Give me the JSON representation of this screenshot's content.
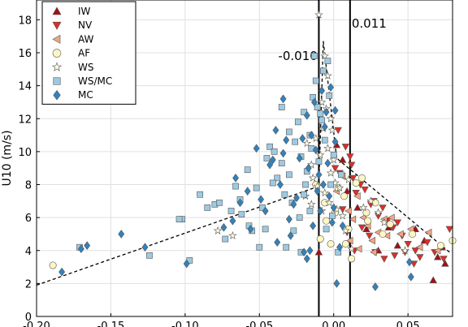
{
  "chart_data": {
    "type": "scatter",
    "title": "",
    "xlabel": "",
    "ylabel": "U10 (m/s)",
    "xlim": [
      -0.2,
      0.08
    ],
    "ylim": [
      0,
      19.2
    ],
    "x_ticks": [
      -0.2,
      -0.15,
      -0.1,
      -0.05,
      0.0,
      0.05
    ],
    "x_tick_labels": [
      "-0.20",
      "-0.15",
      "-0.10",
      "-0.05",
      "0.00",
      "0.05"
    ],
    "y_ticks": [
      0,
      2,
      4,
      6,
      8,
      10,
      12,
      14,
      16,
      18
    ],
    "y_tick_labels": [
      "0",
      "2",
      "4",
      "6",
      "8",
      "10",
      "12",
      "14",
      "16",
      "18"
    ],
    "grid": true,
    "legend_position": "top-left",
    "vertical_lines": [
      {
        "x": -0.01,
        "label": "-0.010"
      },
      {
        "x": 0.011,
        "label": "0.011"
      }
    ],
    "fit_lines": [
      {
        "name": "left",
        "points": [
          [
            -0.2,
            1.9
          ],
          [
            -0.01,
            7.9
          ],
          [
            -0.007,
            16.7
          ]
        ]
      },
      {
        "name": "right",
        "points": [
          [
            -0.007,
            16.7
          ],
          [
            0.002,
            9.6
          ],
          [
            0.078,
            3.9
          ]
        ]
      }
    ],
    "series": [
      {
        "name": "IW",
        "marker": "triangle-up",
        "color": "#a50f15",
        "points": [
          [
            -0.01,
            3.9
          ],
          [
            0.002,
            10.4
          ],
          [
            0.006,
            9.5
          ],
          [
            0.009,
            7.6
          ],
          [
            0.016,
            6.6
          ],
          [
            0.022,
            5.3
          ],
          [
            0.03,
            4.0
          ],
          [
            0.037,
            5.4
          ],
          [
            0.043,
            4.3
          ],
          [
            0.055,
            5.3
          ],
          [
            0.061,
            4.6
          ],
          [
            0.07,
            3.6
          ],
          [
            0.073,
            4.2
          ],
          [
            0.075,
            3.2
          ],
          [
            0.067,
            2.2
          ]
        ]
      },
      {
        "name": "NV",
        "marker": "triangle-down",
        "color": "#de2d26",
        "points": [
          [
            0.001,
            9.0
          ],
          [
            0.004,
            8.7
          ],
          [
            0.008,
            10.3
          ],
          [
            0.011,
            9.7
          ],
          [
            0.013,
            8.4
          ],
          [
            0.015,
            7.5
          ],
          [
            0.018,
            8.0
          ],
          [
            0.021,
            7.7
          ],
          [
            0.025,
            6.8
          ],
          [
            0.027,
            7.0
          ],
          [
            0.03,
            6.1
          ],
          [
            0.033,
            6.6
          ],
          [
            0.036,
            5.8
          ],
          [
            0.04,
            5.4
          ],
          [
            0.043,
            5.7
          ],
          [
            0.046,
            4.9
          ],
          [
            0.05,
            4.4
          ],
          [
            0.055,
            4.0
          ],
          [
            0.058,
            3.6
          ],
          [
            0.063,
            4.5
          ],
          [
            0.068,
            3.9
          ],
          [
            0.074,
            3.5
          ],
          [
            0.078,
            5.3
          ],
          [
            0.006,
            6.5
          ],
          [
            0.009,
            5.1
          ],
          [
            0.014,
            4.0
          ],
          [
            0.019,
            5.4
          ],
          [
            0.024,
            4.9
          ],
          [
            0.028,
            3.9
          ],
          [
            0.034,
            3.5
          ],
          [
            0.041,
            3.7
          ],
          [
            0.048,
            3.9
          ],
          [
            0.054,
            3.2
          ],
          [
            0.003,
            11.3
          ],
          [
            0.012,
            9.2
          ]
        ]
      },
      {
        "name": "AW",
        "marker": "triangle-left",
        "color": "#f4a582",
        "points": [
          [
            0.002,
            7.6
          ],
          [
            0.006,
            8.5
          ],
          [
            0.01,
            6.4
          ],
          [
            0.013,
            5.9
          ],
          [
            0.016,
            7.3
          ],
          [
            0.02,
            6.0
          ],
          [
            0.023,
            5.5
          ],
          [
            0.026,
            4.6
          ],
          [
            0.03,
            5.1
          ],
          [
            0.034,
            5.9
          ],
          [
            0.039,
            6.0
          ],
          [
            0.045,
            5.0
          ],
          [
            0.052,
            5.3
          ],
          [
            0.058,
            4.2
          ],
          [
            0.064,
            5.1
          ],
          [
            0.07,
            4.0
          ],
          [
            0.011,
            4.6
          ],
          [
            0.017,
            4.1
          ],
          [
            0.027,
            3.9
          ],
          [
            0.036,
            4.9
          ]
        ]
      },
      {
        "name": "AF",
        "marker": "circle",
        "color": "#fdf7c3",
        "points": [
          [
            -0.189,
            3.1
          ],
          [
            -0.009,
            4.7
          ],
          [
            -0.005,
            5.8
          ],
          [
            -0.002,
            4.4
          ],
          [
            0.001,
            6.3
          ],
          [
            0.003,
            7.8
          ],
          [
            0.007,
            7.3
          ],
          [
            0.01,
            5.3
          ],
          [
            0.015,
            8.1
          ],
          [
            0.019,
            8.4
          ],
          [
            0.023,
            5.8
          ],
          [
            0.028,
            6.9
          ],
          [
            0.033,
            5.0
          ],
          [
            0.038,
            5.6
          ],
          [
            0.053,
            5.0
          ],
          [
            0.072,
            4.3
          ],
          [
            0.08,
            4.6
          ],
          [
            0.008,
            4.4
          ],
          [
            0.012,
            3.5
          ],
          [
            0.022,
            6.3
          ],
          [
            -0.012,
            8.0
          ],
          [
            -0.006,
            6.9
          ]
        ]
      },
      {
        "name": "WS",
        "marker": "star",
        "color": "#fefbe6",
        "points": [
          [
            -0.01,
            18.3
          ],
          [
            -0.006,
            15.8
          ],
          [
            -0.004,
            14.6
          ],
          [
            -0.008,
            13.0
          ],
          [
            -0.002,
            12.0
          ],
          [
            -0.007,
            11.4
          ],
          [
            -0.012,
            10.8
          ],
          [
            -0.004,
            10.2
          ],
          [
            0.0,
            9.5
          ],
          [
            -0.009,
            9.8
          ],
          [
            -0.015,
            9.2
          ],
          [
            -0.002,
            8.7
          ],
          [
            0.001,
            8.1
          ],
          [
            0.004,
            7.8
          ],
          [
            -0.006,
            7.5
          ],
          [
            -0.011,
            7.9
          ],
          [
            -0.019,
            7.3
          ],
          [
            -0.003,
            6.9
          ],
          [
            0.002,
            6.5
          ],
          [
            0.006,
            6.1
          ],
          [
            -0.008,
            6.4
          ],
          [
            -0.015,
            6.8
          ],
          [
            -0.068,
            4.9
          ],
          [
            -0.078,
            5.2
          ],
          [
            0.025,
            7.0
          ],
          [
            0.012,
            4.1
          ],
          [
            0.048,
            4.0
          ],
          [
            0.034,
            5.7
          ],
          [
            0.02,
            6.6
          ],
          [
            0.008,
            5.2
          ],
          [
            -0.001,
            11.3
          ],
          [
            -0.005,
            12.6
          ],
          [
            -0.018,
            10.5
          ],
          [
            -0.014,
            8.4
          ],
          [
            0.01,
            8.3
          ],
          [
            0.03,
            6.3
          ]
        ]
      },
      {
        "name": "WS/MC",
        "marker": "square",
        "color": "#9ecae1",
        "points": [
          [
            -0.171,
            4.2
          ],
          [
            -0.124,
            3.7
          ],
          [
            -0.102,
            5.9
          ],
          [
            -0.104,
            5.9
          ],
          [
            -0.097,
            3.4
          ],
          [
            -0.09,
            7.4
          ],
          [
            -0.085,
            6.6
          ],
          [
            -0.08,
            6.8
          ],
          [
            -0.077,
            6.9
          ],
          [
            -0.073,
            4.7
          ],
          [
            -0.069,
            6.4
          ],
          [
            -0.063,
            7.1
          ],
          [
            -0.058,
            8.9
          ],
          [
            -0.055,
            5.2
          ],
          [
            -0.052,
            7.8
          ],
          [
            -0.048,
            6.6
          ],
          [
            -0.045,
            9.6
          ],
          [
            -0.043,
            10.3
          ],
          [
            -0.04,
            10.0
          ],
          [
            -0.038,
            8.4
          ],
          [
            -0.035,
            9.3
          ],
          [
            -0.033,
            7.4
          ],
          [
            -0.03,
            11.2
          ],
          [
            -0.028,
            6.9
          ],
          [
            -0.026,
            10.6
          ],
          [
            -0.024,
            11.8
          ],
          [
            -0.022,
            9.7
          ],
          [
            -0.02,
            12.4
          ],
          [
            -0.018,
            8.8
          ],
          [
            -0.016,
            11.0
          ],
          [
            -0.014,
            13.3
          ],
          [
            -0.012,
            14.3
          ],
          [
            -0.01,
            9.4
          ],
          [
            -0.008,
            11.9
          ],
          [
            -0.006,
            10.7
          ],
          [
            -0.004,
            15.5
          ],
          [
            -0.002,
            8.0
          ],
          [
            0.0,
            9.8
          ],
          [
            -0.003,
            13.4
          ],
          [
            -0.007,
            14.9
          ],
          [
            -0.011,
            12.7
          ],
          [
            -0.015,
            10.2
          ],
          [
            -0.019,
            8.0
          ],
          [
            -0.023,
            6.0
          ],
          [
            -0.027,
            5.2
          ],
          [
            -0.032,
            4.2
          ],
          [
            -0.046,
            5.3
          ],
          [
            -0.05,
            4.2
          ],
          [
            -0.022,
            3.9
          ],
          [
            0.003,
            3.9
          ],
          [
            -0.001,
            6.1
          ],
          [
            0.005,
            8.6
          ],
          [
            -0.035,
            12.7
          ],
          [
            -0.013,
            15.8
          ],
          [
            -0.009,
            12.3
          ],
          [
            -0.041,
            8.1
          ],
          [
            -0.062,
            6.2
          ],
          [
            -0.066,
            7.9
          ],
          [
            -0.057,
            5.5
          ],
          [
            -0.03,
            8.6
          ],
          [
            -0.02,
            7.4
          ],
          [
            -0.016,
            6.4
          ],
          [
            -0.005,
            5.3
          ]
        ]
      },
      {
        "name": "MC",
        "marker": "diamond",
        "color": "#3182bd",
        "points": [
          [
            -0.183,
            2.7
          ],
          [
            -0.17,
            4.1
          ],
          [
            -0.166,
            4.3
          ],
          [
            -0.143,
            5.0
          ],
          [
            -0.127,
            4.2
          ],
          [
            -0.099,
            3.2
          ],
          [
            -0.074,
            5.4
          ],
          [
            -0.068,
            5.8
          ],
          [
            -0.066,
            8.4
          ],
          [
            -0.063,
            6.9
          ],
          [
            -0.058,
            7.6
          ],
          [
            -0.056,
            5.3
          ],
          [
            -0.052,
            10.2
          ],
          [
            -0.049,
            7.1
          ],
          [
            -0.046,
            6.4
          ],
          [
            -0.043,
            9.2
          ],
          [
            -0.041,
            9.5
          ],
          [
            -0.039,
            11.3
          ],
          [
            -0.036,
            8.0
          ],
          [
            -0.034,
            9.9
          ],
          [
            -0.032,
            10.7
          ],
          [
            -0.03,
            5.9
          ],
          [
            -0.029,
            4.9
          ],
          [
            -0.027,
            6.8
          ],
          [
            -0.025,
            7.2
          ],
          [
            -0.023,
            9.6
          ],
          [
            -0.021,
            10.8
          ],
          [
            -0.02,
            3.9
          ],
          [
            -0.018,
            12.2
          ],
          [
            -0.017,
            9.0
          ],
          [
            -0.015,
            11.0
          ],
          [
            -0.013,
            13.0
          ],
          [
            -0.012,
            10.1
          ],
          [
            -0.01,
            8.6
          ],
          [
            -0.009,
            6.4
          ],
          [
            -0.008,
            13.7
          ],
          [
            -0.006,
            11.5
          ],
          [
            -0.004,
            9.3
          ],
          [
            -0.003,
            7.3
          ],
          [
            -0.001,
            5.7
          ],
          [
            0.001,
            10.6
          ],
          [
            -0.002,
            13.9
          ],
          [
            -0.005,
            12.4
          ],
          [
            -0.011,
            7.6
          ],
          [
            -0.014,
            5.5
          ],
          [
            -0.016,
            4.0
          ],
          [
            -0.018,
            3.5
          ],
          [
            -0.034,
            13.2
          ],
          [
            -0.038,
            4.5
          ],
          [
            -0.007,
            8.0
          ],
          [
            0.0,
            6.6
          ],
          [
            0.002,
            2.0
          ],
          [
            0.004,
            4.2
          ],
          [
            0.006,
            5.5
          ],
          [
            0.028,
            1.8
          ],
          [
            0.052,
            2.4
          ],
          [
            0.051,
            3.3
          ],
          [
            0.001,
            12.5
          ]
        ]
      }
    ]
  }
}
